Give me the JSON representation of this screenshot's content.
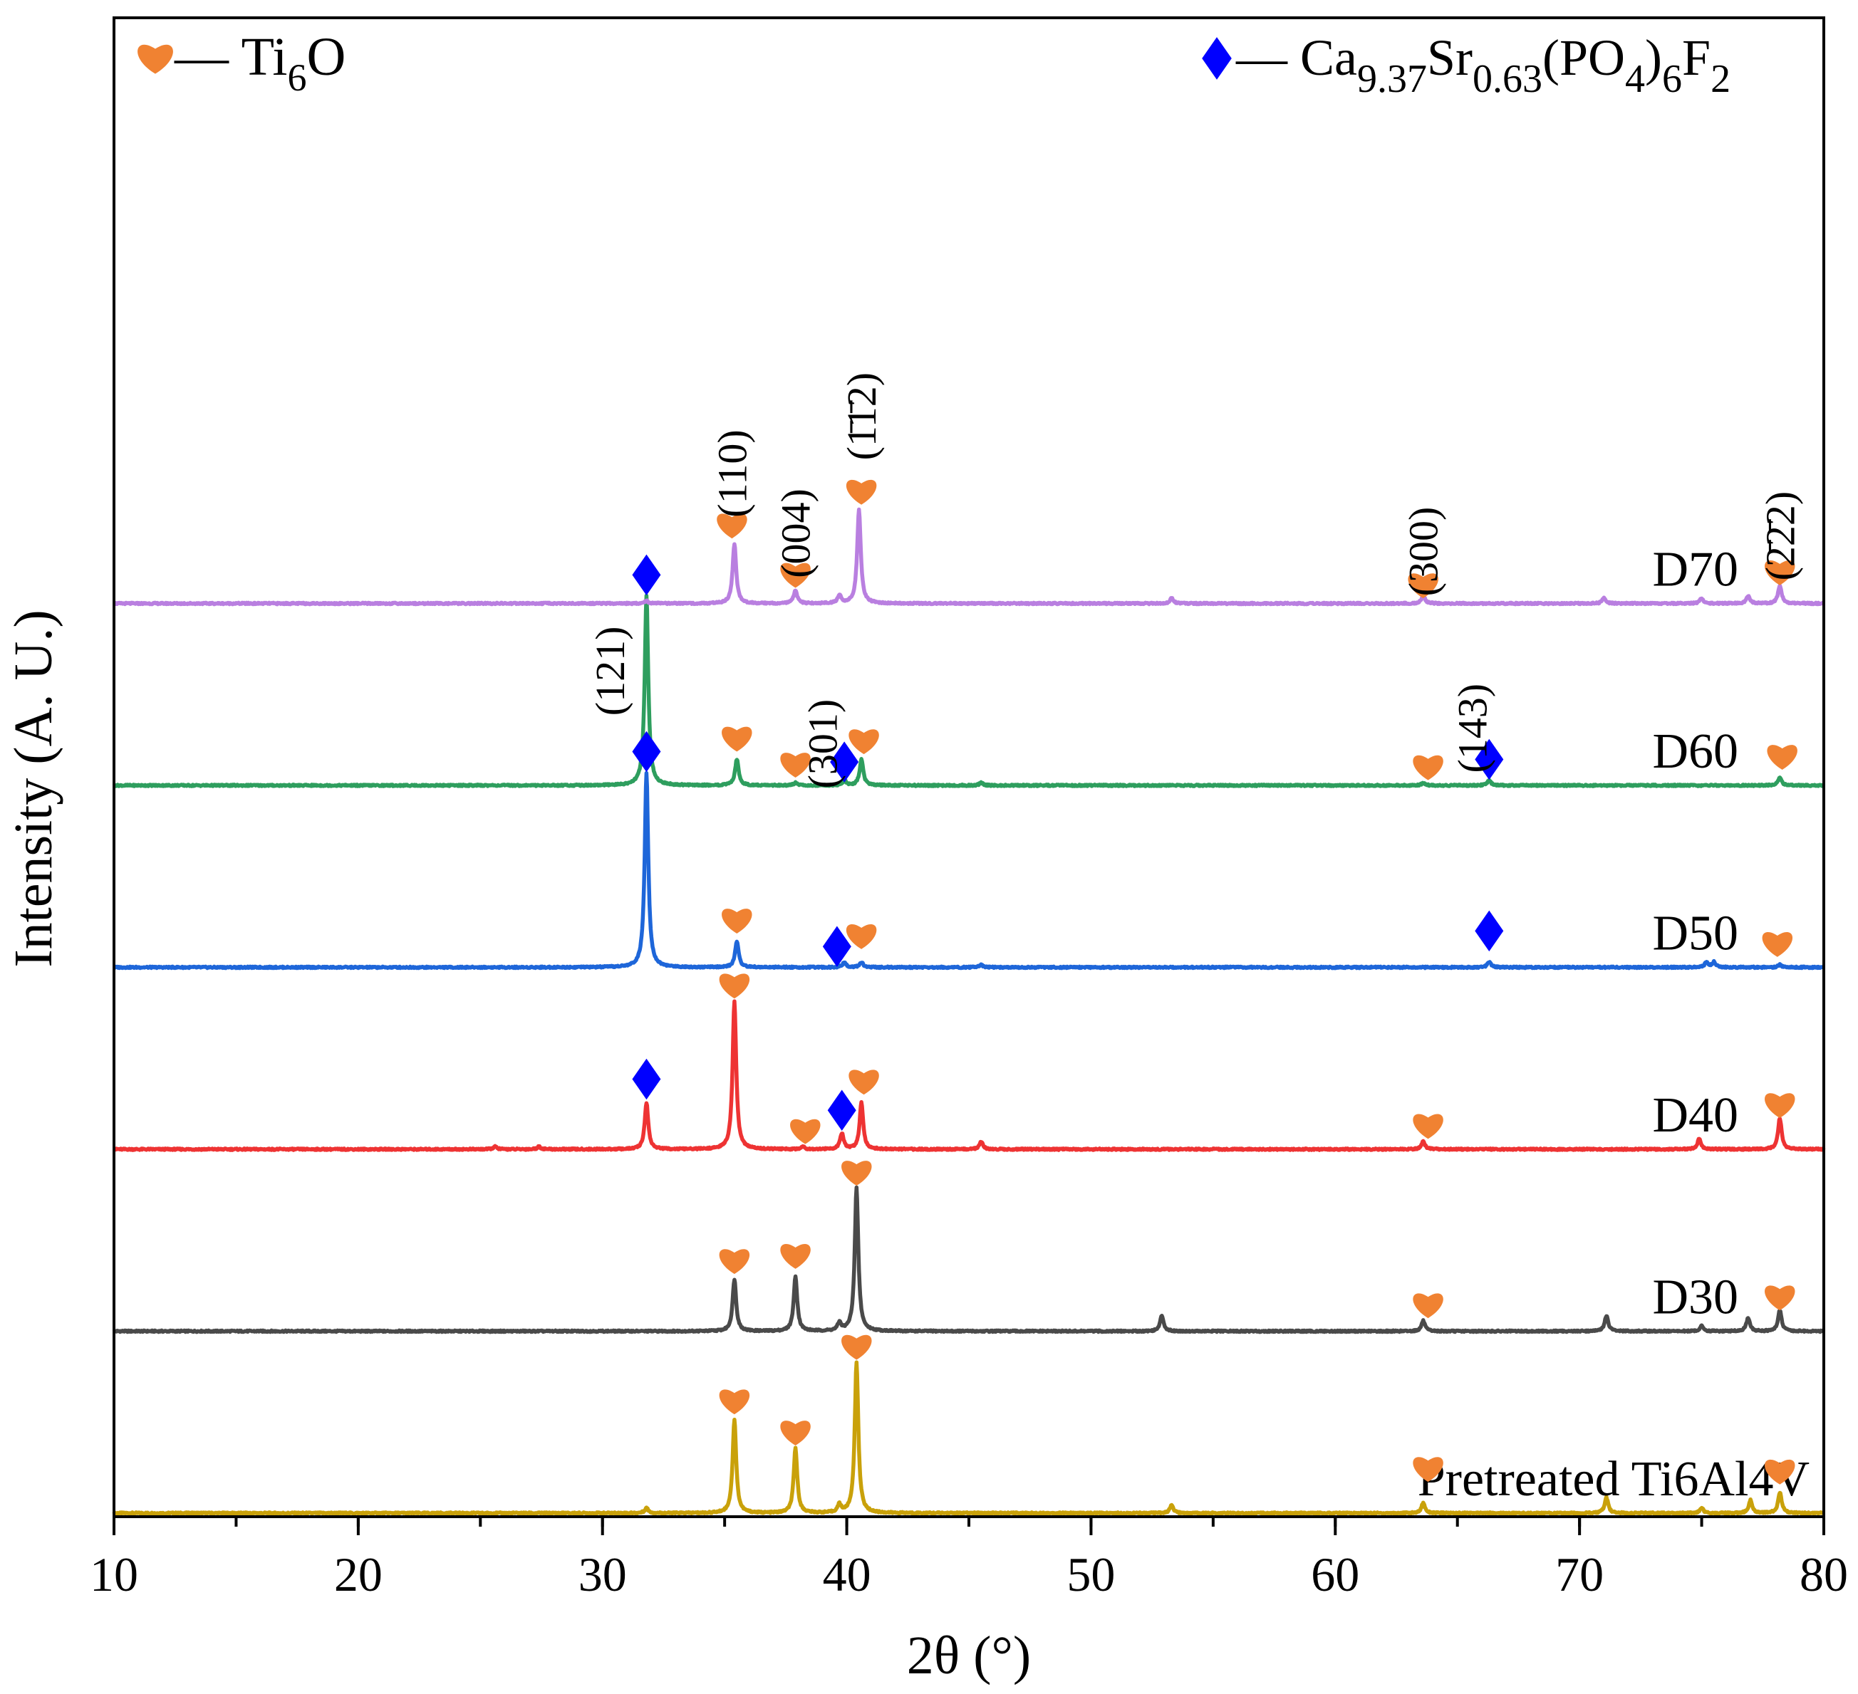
{
  "chart_data": {
    "type": "line",
    "title": "",
    "xlabel": "2θ (°)",
    "ylabel": "Intensity (A. U.)",
    "xlim": [
      10,
      80
    ],
    "x_ticks": [
      10,
      20,
      30,
      40,
      50,
      60,
      70,
      80
    ],
    "x_tick_labels": [
      "10",
      "20",
      "30",
      "40",
      "50",
      "60",
      "70",
      "80"
    ],
    "x_minor_step": 5,
    "grid": false,
    "legend": {
      "position": "top",
      "entries": [
        {
          "marker": "heart",
          "color": "#F08232",
          "dash": "—",
          "name": "Ti",
          "sub": "6",
          "tail": "O"
        },
        {
          "marker": "diamond",
          "color": "#0000FF",
          "dash": "—",
          "name": "Ca",
          "parts": [
            [
              "Ca",
              ""
            ],
            [
              "9.37",
              "sub"
            ],
            [
              "Sr",
              ""
            ],
            [
              "0.63",
              "sub"
            ],
            [
              "(PO",
              ""
            ],
            [
              "4",
              "sub"
            ],
            [
              ")",
              ""
            ],
            [
              "6",
              "sub"
            ],
            [
              "F",
              ""
            ],
            [
              "2",
              "sub"
            ]
          ]
        }
      ]
    },
    "series": [
      {
        "name": "Pretreated Ti6Al4V",
        "color": "#C9A10A",
        "baseline": 0.0,
        "label_x": 69.0,
        "peaks": [
          [
            31.8,
            0.02
          ],
          [
            35.4,
            0.36
          ],
          [
            37.9,
            0.25
          ],
          [
            39.7,
            0.03
          ],
          [
            40.4,
            0.58
          ],
          [
            53.3,
            0.03
          ],
          [
            63.6,
            0.04
          ],
          [
            71.1,
            0.06
          ],
          [
            75.0,
            0.02
          ],
          [
            77.0,
            0.05
          ],
          [
            78.2,
            0.08
          ]
        ],
        "markers": [
          {
            "x": 35.4,
            "y": 0.44,
            "type": "heart"
          },
          {
            "x": 37.9,
            "y": 0.32,
            "type": "heart"
          },
          {
            "x": 40.4,
            "y": 0.65,
            "type": "heart"
          },
          {
            "x": 63.8,
            "y": 0.18,
            "type": "heart"
          },
          {
            "x": 78.2,
            "y": 0.17,
            "type": "heart"
          }
        ],
        "hkl": []
      },
      {
        "name": "D30",
        "color": "#4A4A4A",
        "baseline": 0.7,
        "label_x": 72.4,
        "peaks": [
          [
            35.4,
            0.2
          ],
          [
            37.9,
            0.21
          ],
          [
            39.7,
            0.03
          ],
          [
            40.4,
            0.55
          ],
          [
            52.9,
            0.06
          ],
          [
            63.6,
            0.04
          ],
          [
            71.1,
            0.06
          ],
          [
            75.0,
            0.02
          ],
          [
            76.9,
            0.05
          ],
          [
            78.2,
            0.08
          ]
        ],
        "markers": [
          {
            "x": 35.4,
            "y": 0.28,
            "type": "heart"
          },
          {
            "x": 37.9,
            "y": 0.3,
            "type": "heart"
          },
          {
            "x": 40.4,
            "y": 0.62,
            "type": "heart"
          },
          {
            "x": 63.8,
            "y": 0.11,
            "type": "heart"
          },
          {
            "x": 78.2,
            "y": 0.14,
            "type": "heart"
          }
        ],
        "hkl": []
      },
      {
        "name": "D40",
        "color": "#EE3333",
        "baseline": 1.4,
        "label_x": 72.4,
        "peaks": [
          [
            25.6,
            0.01
          ],
          [
            27.4,
            0.01
          ],
          [
            31.8,
            0.18
          ],
          [
            35.4,
            0.57
          ],
          [
            38.2,
            0.01
          ],
          [
            39.8,
            0.06
          ],
          [
            40.6,
            0.18
          ],
          [
            45.5,
            0.03
          ],
          [
            63.6,
            0.03
          ],
          [
            74.9,
            0.04
          ],
          [
            78.2,
            0.12
          ]
        ],
        "markers": [
          {
            "x": 31.8,
            "y": 0.27,
            "type": "diamond"
          },
          {
            "x": 35.4,
            "y": 0.64,
            "type": "heart"
          },
          {
            "x": 38.3,
            "y": 0.08,
            "type": "heart"
          },
          {
            "x": 39.8,
            "y": 0.15,
            "type": "diamond"
          },
          {
            "x": 40.7,
            "y": 0.27,
            "type": "heart"
          },
          {
            "x": 63.8,
            "y": 0.1,
            "type": "heart"
          },
          {
            "x": 78.2,
            "y": 0.18,
            "type": "heart"
          }
        ],
        "hkl": []
      },
      {
        "name": "D50",
        "color": "#1E66D9",
        "baseline": 2.1,
        "label_x": 72.4,
        "peaks": [
          [
            31.8,
            0.75
          ],
          [
            35.5,
            0.1
          ],
          [
            39.9,
            0.02
          ],
          [
            40.6,
            0.02
          ],
          [
            45.5,
            0.01
          ],
          [
            66.3,
            0.02
          ],
          [
            75.2,
            0.02
          ],
          [
            75.5,
            0.02
          ],
          [
            78.2,
            0.01
          ]
        ],
        "markers": [
          {
            "x": 31.8,
            "y": 0.83,
            "type": "diamond"
          },
          {
            "x": 35.5,
            "y": 0.19,
            "type": "heart"
          },
          {
            "x": 39.6,
            "y": 0.08,
            "type": "diamond"
          },
          {
            "x": 40.6,
            "y": 0.13,
            "type": "heart"
          },
          {
            "x": 66.3,
            "y": 0.14,
            "type": "diamond"
          },
          {
            "x": 78.1,
            "y": 0.1,
            "type": "heart"
          }
        ],
        "hkl": []
      },
      {
        "name": "D60",
        "color": "#2E9E5E",
        "baseline": 2.8,
        "label_x": 72.4,
        "peaks": [
          [
            31.8,
            0.73
          ],
          [
            35.5,
            0.1
          ],
          [
            37.9,
            0.01
          ],
          [
            39.9,
            0.02
          ],
          [
            40.6,
            0.1
          ],
          [
            45.5,
            0.01
          ],
          [
            66.3,
            0.02
          ],
          [
            63.6,
            0.01
          ],
          [
            78.2,
            0.03
          ]
        ],
        "markers": [
          {
            "x": 31.8,
            "y": 0.81,
            "type": "diamond"
          },
          {
            "x": 35.5,
            "y": 0.19,
            "type": "heart"
          },
          {
            "x": 37.9,
            "y": 0.09,
            "type": "heart"
          },
          {
            "x": 39.9,
            "y": 0.09,
            "type": "diamond"
          },
          {
            "x": 40.7,
            "y": 0.18,
            "type": "heart"
          },
          {
            "x": 63.8,
            "y": 0.08,
            "type": "heart"
          },
          {
            "x": 66.3,
            "y": 0.1,
            "type": "diamond"
          },
          {
            "x": 78.3,
            "y": 0.12,
            "type": "heart"
          }
        ],
        "hkl": [
          {
            "x": 30.3,
            "text": "(121)",
            "y": 0.44
          },
          {
            "x": 39.0,
            "text": "(301)",
            "y": 0.16
          },
          {
            "x": 65.6,
            "text": "(143)",
            "y": 0.22
          }
        ]
      },
      {
        "name": "D70",
        "color": "#B97FE0",
        "baseline": 3.5,
        "label_x": 72.4,
        "peaks": [
          [
            31.8,
            0.01
          ],
          [
            35.4,
            0.23
          ],
          [
            37.9,
            0.05
          ],
          [
            39.7,
            0.03
          ],
          [
            40.5,
            0.36
          ],
          [
            53.3,
            0.02
          ],
          [
            63.6,
            0.03
          ],
          [
            71.0,
            0.02
          ],
          [
            75.0,
            0.02
          ],
          [
            76.9,
            0.03
          ],
          [
            78.2,
            0.07
          ]
        ],
        "markers": [
          {
            "x": 35.3,
            "y": 0.31,
            "type": "heart"
          },
          {
            "x": 37.9,
            "y": 0.12,
            "type": "heart"
          },
          {
            "x": 40.6,
            "y": 0.44,
            "type": "heart"
          },
          {
            "x": 63.6,
            "y": 0.08,
            "type": "heart"
          },
          {
            "x": 78.2,
            "y": 0.13,
            "type": "heart"
          }
        ],
        "hkl": [
          {
            "x": 35.3,
            "text": "(110)",
            "y": 0.5,
            "overbar": []
          },
          {
            "x": 37.9,
            "text": "(004)",
            "y": 0.27,
            "overbar": []
          },
          {
            "x": 40.6,
            "text": "(1̄1̄2)",
            "y": 0.72,
            "overbar": []
          },
          {
            "x": 63.6,
            "text": "(300)",
            "y": 0.2,
            "overbar": []
          },
          {
            "x": 78.2,
            "text": "(2̄2̄2)",
            "y": 0.26,
            "overbar": []
          }
        ]
      }
    ]
  }
}
